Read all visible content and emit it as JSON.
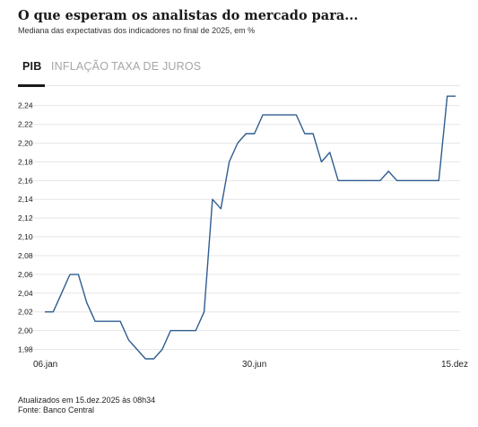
{
  "header": {
    "title": "O que esperam os analistas do mercado para...",
    "subtitle": "Mediana das expectativas dos indicadores no final de 2025, em %"
  },
  "tabs": [
    {
      "label": "PIB",
      "active": true
    },
    {
      "label": "INFLAÇÃO",
      "active": false
    },
    {
      "label": "TAXA DE JUROS",
      "active": false
    }
  ],
  "colors": {
    "line": "#2e5d8f",
    "grid": "#e6e6e6",
    "active_tab": "#1a1a1a",
    "inactive_tab": "#a6a6a6"
  },
  "chart_data": {
    "type": "line",
    "title": "",
    "xlabel": "",
    "ylabel": "",
    "ylim": [
      1.97,
      2.25
    ],
    "y_ticks": [
      "2,24",
      "2,22",
      "2,20",
      "2,18",
      "2,16",
      "2,14",
      "2,12",
      "2,10",
      "2,08",
      "2,06",
      "2,04",
      "2,02",
      "2,00",
      "1,98"
    ],
    "y_tick_values": [
      2.24,
      2.22,
      2.2,
      2.18,
      2.16,
      2.14,
      2.12,
      2.1,
      2.08,
      2.06,
      2.04,
      2.02,
      2.0,
      1.98
    ],
    "x_ticks": [
      {
        "label": "06.jan",
        "index": 0
      },
      {
        "label": "30.jun",
        "index": 25
      },
      {
        "label": "15.dez",
        "index": 49
      }
    ],
    "grid": "horizontal",
    "series": [
      {
        "values": [
          2.02,
          2.02,
          2.04,
          2.06,
          2.06,
          2.03,
          2.01,
          2.01,
          2.01,
          2.01,
          1.99,
          1.98,
          1.97,
          1.97,
          1.98,
          2.0,
          2.0,
          2.0,
          2.0,
          2.02,
          2.14,
          2.13,
          2.18,
          2.2,
          2.21,
          2.21,
          2.23,
          2.23,
          2.23,
          2.23,
          2.23,
          2.21,
          2.21,
          2.18,
          2.19,
          2.16,
          2.16,
          2.16,
          2.16,
          2.16,
          2.16,
          2.17,
          2.16,
          2.16,
          2.16,
          2.16,
          2.16,
          2.16,
          2.25,
          2.25
        ]
      }
    ]
  },
  "footer": {
    "updated": "Atualizados em 15.dez.2025 às 08h34",
    "source": "Fonte: Banco Central"
  }
}
